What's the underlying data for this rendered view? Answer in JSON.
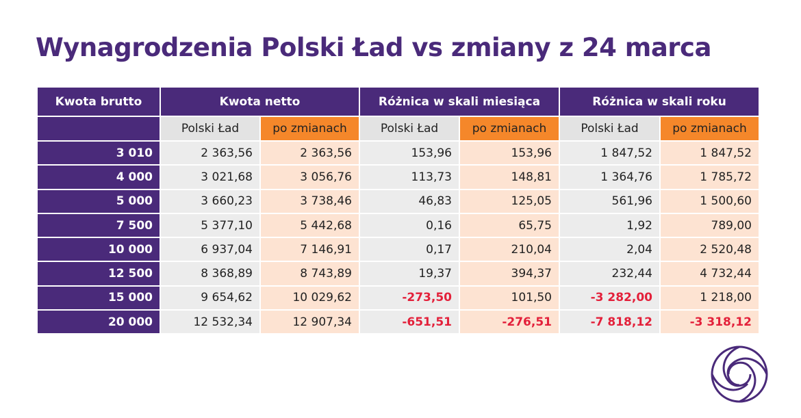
{
  "title": "Wynagrodzenia Polski Ład vs zmiany z 24 marca",
  "table": {
    "header": [
      "Kwota brutto",
      "Kwota netto",
      "Różnica w skali miesiąca",
      "Różnica w skali roku"
    ],
    "subheader": [
      "Polski Ład",
      "po zmianach",
      "Polski Ład",
      "po zmianach",
      "Polski Ład",
      "po zmianach"
    ],
    "rows": [
      [
        "3 010",
        "2 363,56",
        "2 363,56",
        "153,96",
        "153,96",
        "1 847,52",
        "1 847,52"
      ],
      [
        "4 000",
        "3 021,68",
        "3 056,76",
        "113,73",
        "148,81",
        "1 364,76",
        "1 785,72"
      ],
      [
        "5 000",
        "3 660,23",
        "3 738,46",
        "46,83",
        "125,05",
        "561,96",
        "1 500,60"
      ],
      [
        "7 500",
        "5 377,10",
        "5 442,68",
        "0,16",
        "65,75",
        "1,92",
        "789,00"
      ],
      [
        "10 000",
        "6 937,04",
        "7 146,91",
        "0,17",
        "210,04",
        "2,04",
        "2 520,48"
      ],
      [
        "12 500",
        "8 368,89",
        "8 743,89",
        "19,37",
        "394,37",
        "232,44",
        "4 732,44"
      ],
      [
        "15 000",
        "9 654,62",
        "10 029,62",
        "-273,50",
        "101,50",
        "-3 282,00",
        "1 218,00"
      ],
      [
        "20 000",
        "12 532,34",
        "12 907,34",
        "-651,51",
        "-276,51",
        "-7 818,12",
        "-3 318,12"
      ]
    ]
  }
}
